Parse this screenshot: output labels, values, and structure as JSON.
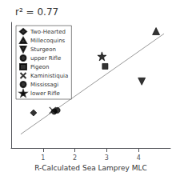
{
  "chart_data": {
    "type": "scatter",
    "title": "r² = 0.77",
    "x_label": "R-Calculated Sea Lamprey MLC",
    "xlim": [
      0,
      5
    ],
    "ylim": [
      0,
      5
    ],
    "xticks": [
      1,
      2,
      3,
      4
    ],
    "yticks": [],
    "tick_labels": "x",
    "grid": false,
    "legend": "upper left",
    "series": [
      {
        "type": "line",
        "color": "#999999",
        "x": [
          0.3,
          4.8
        ],
        "y": [
          0.55,
          4.55
        ]
      },
      {
        "name": "Two-Hearted",
        "type": "scatter",
        "marker": "diamond",
        "color": "black",
        "x": [
          0.7
        ],
        "y": [
          1.4
        ]
      },
      {
        "name": "Millecoquins",
        "type": "scatter",
        "marker": "triangle_up",
        "color": "black",
        "x": [
          4.55
        ],
        "y": [
          4.65
        ]
      },
      {
        "name": "Sturgeon",
        "type": "scatter",
        "marker": "triangle_down",
        "color": "black",
        "x": [
          4.1
        ],
        "y": [
          2.65
        ]
      },
      {
        "name": "upper Rifle",
        "type": "scatter",
        "marker": "circle",
        "color": "black",
        "x": [
          1.35
        ],
        "y": [
          1.45
        ]
      },
      {
        "name": "Pigeon",
        "type": "scatter",
        "marker": "square",
        "color": "black",
        "x": [
          2.95
        ],
        "y": [
          3.25
        ]
      },
      {
        "name": "Kaministiquia",
        "type": "scatter",
        "marker": "x",
        "color": "black",
        "x": [
          1.3
        ],
        "y": [
          1.5
        ]
      },
      {
        "name": "Mississagi",
        "type": "scatter",
        "marker": "circle",
        "color": "black",
        "x": [
          1.45
        ],
        "y": [
          1.5
        ]
      },
      {
        "name": "lower Rifle",
        "type": "scatter",
        "marker": "star",
        "color": "black",
        "x": [
          2.85
        ],
        "y": [
          3.65
        ]
      }
    ]
  }
}
